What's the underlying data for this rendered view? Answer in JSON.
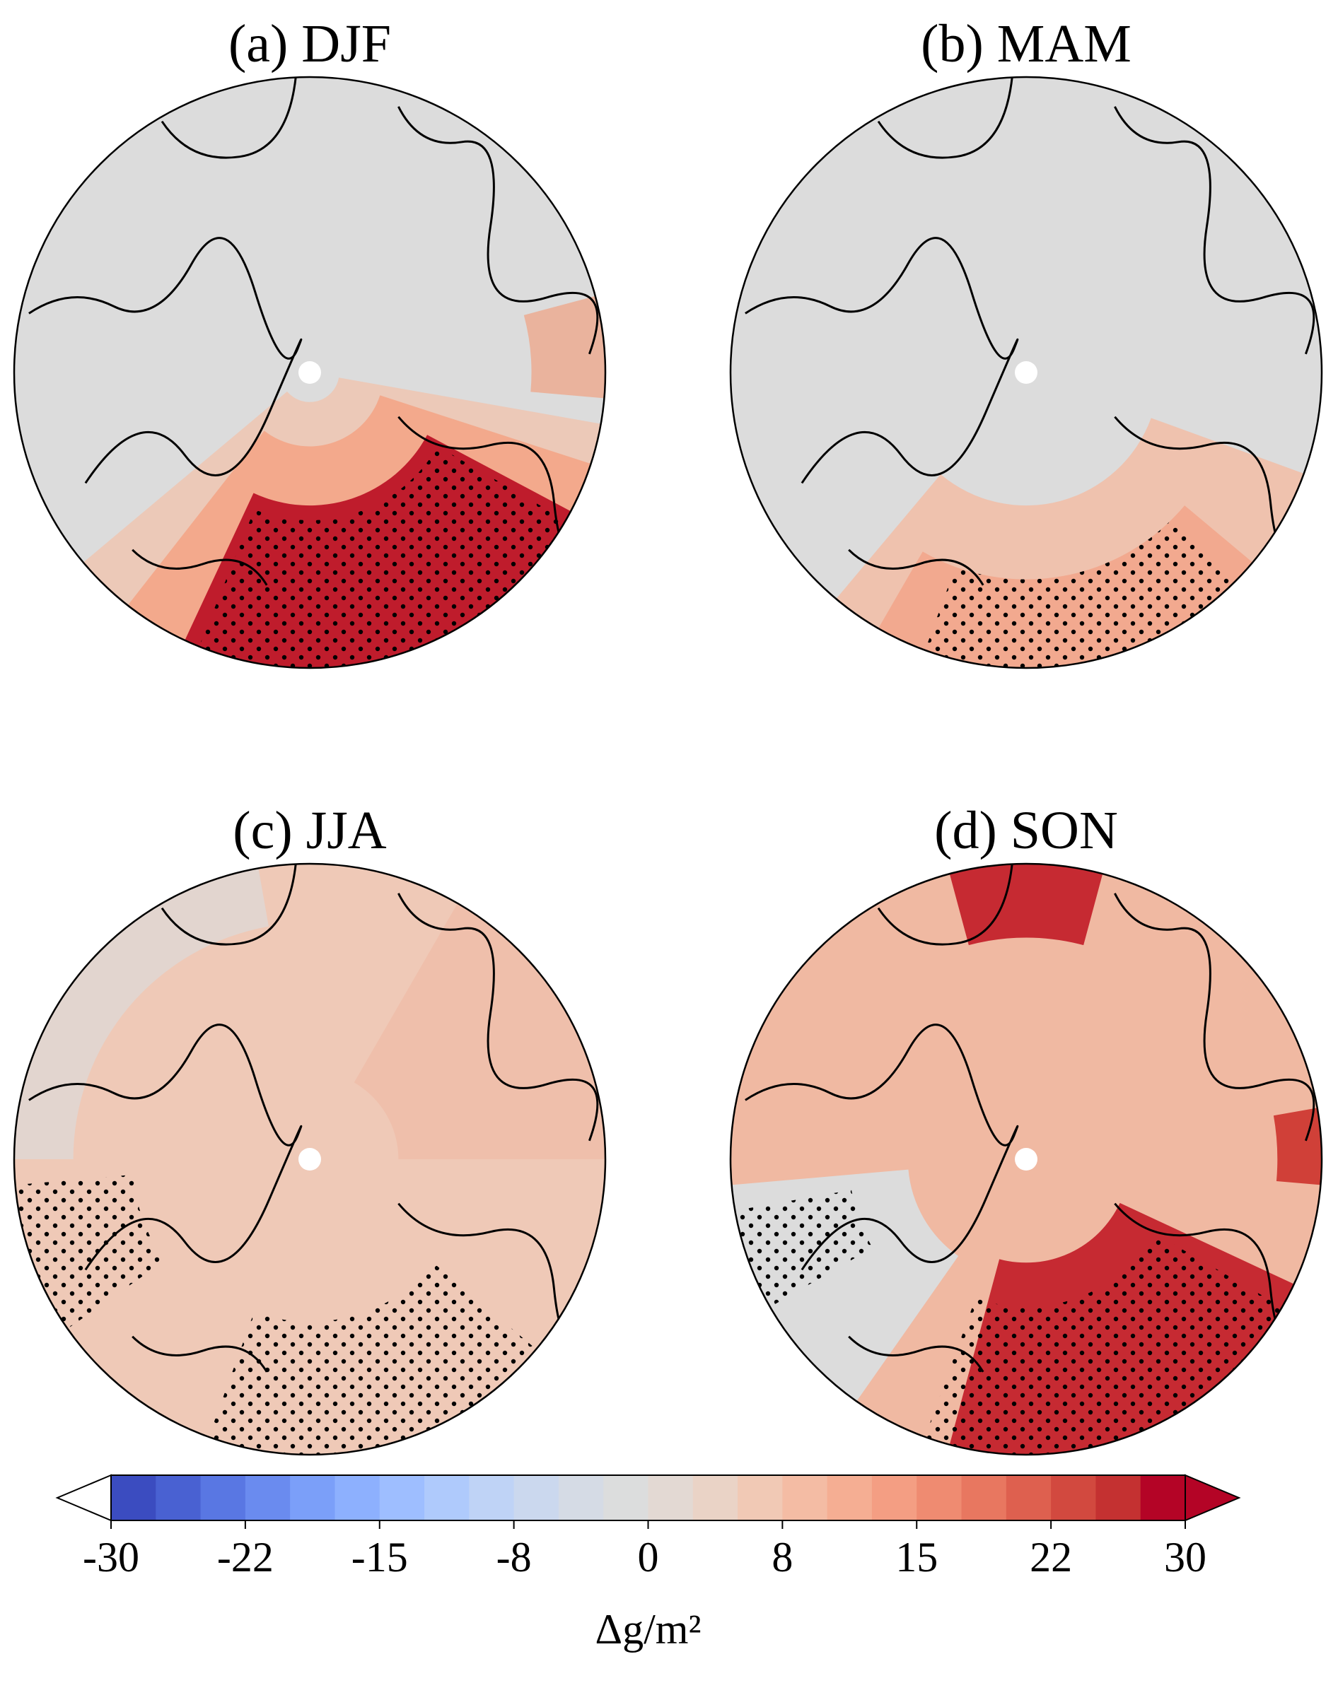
{
  "chart_data": {
    "type": "polar-maps",
    "panels": [
      {
        "title": "(a) DJF"
      },
      {
        "title": "(b) MAM"
      },
      {
        "title": "(c) JJA"
      },
      {
        "title": "(d) SON"
      }
    ],
    "colorbar": {
      "label": "Δg/m²",
      "clim": [
        -30,
        30
      ],
      "ticks": [
        -30,
        {
          "value": -22.5,
          "label": "-22"
        },
        -15,
        {
          "value": -7.5,
          "label": "-8"
        },
        0,
        {
          "value": 7.5,
          "label": "8"
        },
        15,
        {
          "value": 22.5,
          "label": "22"
        },
        30
      ],
      "colors": [
        "#3b4cc0",
        "#4961d2",
        "#5977e3",
        "#6a8bef",
        "#7b9ff9",
        "#8db0fe",
        "#9ebeff",
        "#afcafc",
        "#bfd3f6",
        "#cbd8ee",
        "#d5dbe5",
        "#dcdddd",
        "#e3d9d3",
        "#ead3c6",
        "#f1c9b5",
        "#f4bca4",
        "#f5ae93",
        "#f49e83",
        "#ef8b71",
        "#e87760",
        "#de604f",
        "#d2493f",
        "#c43131",
        "#b40426"
      ],
      "extend_under": "#ffffff",
      "extend_over": "#b40426"
    }
  }
}
